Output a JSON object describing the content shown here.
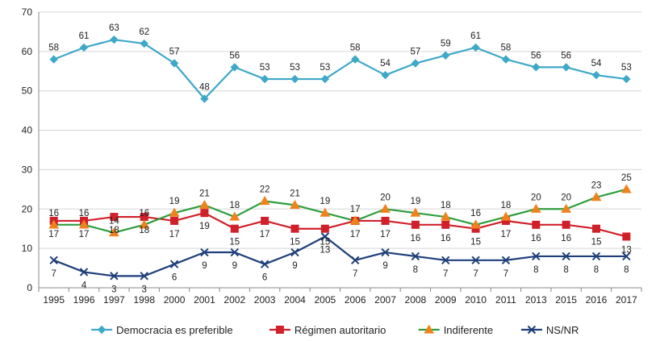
{
  "chart_data": {
    "type": "line",
    "title": "",
    "xlabel": "",
    "ylabel": "",
    "ylim": [
      0,
      70
    ],
    "yticks": [
      0,
      10,
      20,
      30,
      40,
      50,
      60,
      70
    ],
    "grid": "horizontal",
    "legend_position": "bottom",
    "categories": [
      "1995",
      "1996",
      "1997",
      "1998",
      "2000",
      "2001",
      "2002",
      "2003",
      "2004",
      "2005",
      "2006",
      "2007",
      "2008",
      "2009",
      "2010",
      "2011",
      "2013",
      "2015",
      "2016",
      "2017"
    ],
    "series": [
      {
        "name": "Democracia es preferible",
        "color": "#3fa8c8",
        "marker": "diamond",
        "values": [
          58,
          61,
          63,
          62,
          57,
          48,
          56,
          53,
          53,
          53,
          58,
          54,
          57,
          59,
          61,
          58,
          56,
          56,
          54,
          53
        ],
        "label_position": "above"
      },
      {
        "name": "Régimen autoritario",
        "color": "#d0202a",
        "marker": "square",
        "values": [
          17,
          17,
          18,
          18,
          17,
          19,
          15,
          17,
          15,
          15,
          17,
          17,
          16,
          16,
          15,
          17,
          16,
          16,
          15,
          13
        ],
        "label_position": "below"
      },
      {
        "name": "Indiferente",
        "color": "#2e9e3e",
        "marker_color": "#f0821e",
        "marker": "triangle",
        "values": [
          16,
          16,
          14,
          16,
          19,
          21,
          18,
          22,
          21,
          19,
          17,
          20,
          19,
          18,
          16,
          18,
          20,
          20,
          23,
          25
        ],
        "label_position": "above"
      },
      {
        "name": "NS/NR",
        "color": "#1f3f7a",
        "marker": "x",
        "values": [
          7,
          4,
          3,
          3,
          6,
          9,
          9,
          6,
          9,
          13,
          7,
          9,
          8,
          7,
          7,
          7,
          8,
          8,
          8,
          8
        ],
        "label_position": "below"
      }
    ]
  }
}
